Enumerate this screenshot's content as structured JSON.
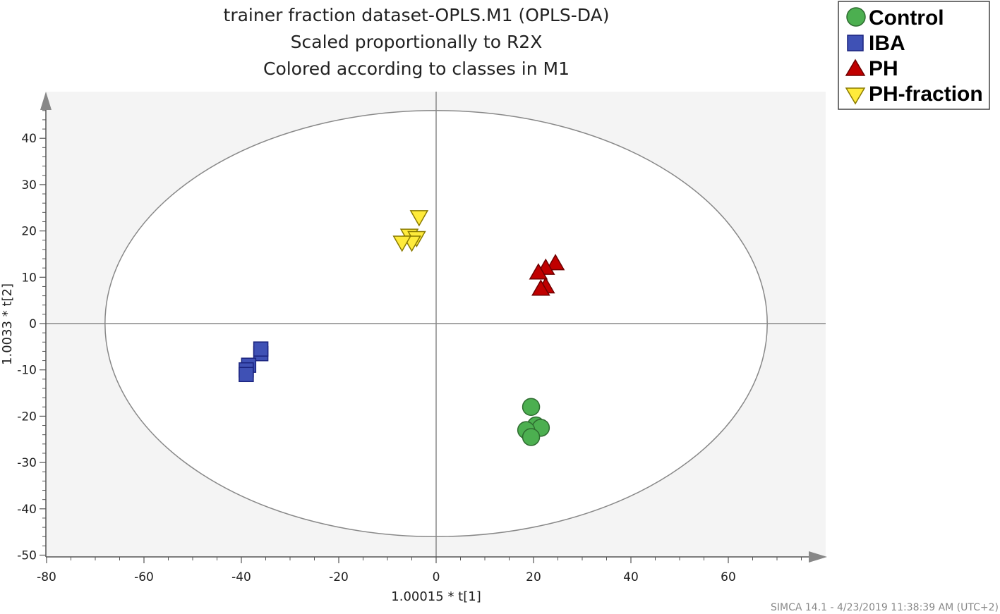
{
  "chart_data": {
    "type": "scatter",
    "title_lines": [
      "trainer fraction dataset-OPLS.M1 (OPLS-DA)",
      "Scaled proportionally to R2X",
      "Colored according to classes in M1"
    ],
    "xlabel": "1.00015 * t[1]",
    "ylabel": "1.0033 * t[2]",
    "xlim": [
      -80,
      80
    ],
    "ylim": [
      -50,
      50
    ],
    "xticks": [
      "-80",
      "-60",
      "-40",
      "-20",
      "0",
      "20",
      "40",
      "60"
    ],
    "yticks": [
      "-50",
      "-40",
      "-30",
      "-20",
      "-10",
      "0",
      "10",
      "20",
      "30",
      "40"
    ],
    "xtick_values": [
      -80,
      -60,
      -40,
      -20,
      0,
      20,
      40,
      60
    ],
    "ytick_values": [
      -50,
      -40,
      -30,
      -20,
      -10,
      0,
      10,
      20,
      30,
      40
    ],
    "ellipse": {
      "rx": 68,
      "ry": 46
    },
    "legend_position": "top-right",
    "series": [
      {
        "name": "Control",
        "marker": "circle",
        "color": "#4caf50",
        "stroke": "#2e6b30",
        "points": [
          [
            19.5,
            -18
          ],
          [
            20.5,
            -22
          ],
          [
            21.5,
            -22.5
          ],
          [
            18.5,
            -23
          ],
          [
            19.5,
            -24.5
          ]
        ]
      },
      {
        "name": "IBA",
        "marker": "square",
        "color": "#3f51b5",
        "stroke": "#1a237e",
        "points": [
          [
            -36,
            -6.5
          ],
          [
            -36,
            -5.5
          ],
          [
            -38.5,
            -9
          ],
          [
            -39,
            -10
          ],
          [
            -39,
            -11
          ]
        ]
      },
      {
        "name": "PH",
        "marker": "triangle-up",
        "color": "#c00000",
        "stroke": "#6d0000",
        "points": [
          [
            24.5,
            13
          ],
          [
            22.5,
            12
          ],
          [
            21,
            11
          ],
          [
            22.5,
            8
          ],
          [
            21.5,
            7.5
          ]
        ]
      },
      {
        "name": "PH-fraction",
        "marker": "triangle-down",
        "color": "#ffeb3b",
        "stroke": "#8a7a00",
        "points": [
          [
            -3.5,
            23
          ],
          [
            -5.5,
            19
          ],
          [
            -4,
            18.5
          ],
          [
            -5,
            17.5
          ],
          [
            -7,
            17.5
          ]
        ]
      }
    ]
  },
  "footer": "SIMCA 14.1 - 4/23/2019 11:38:39 AM (UTC+2)"
}
